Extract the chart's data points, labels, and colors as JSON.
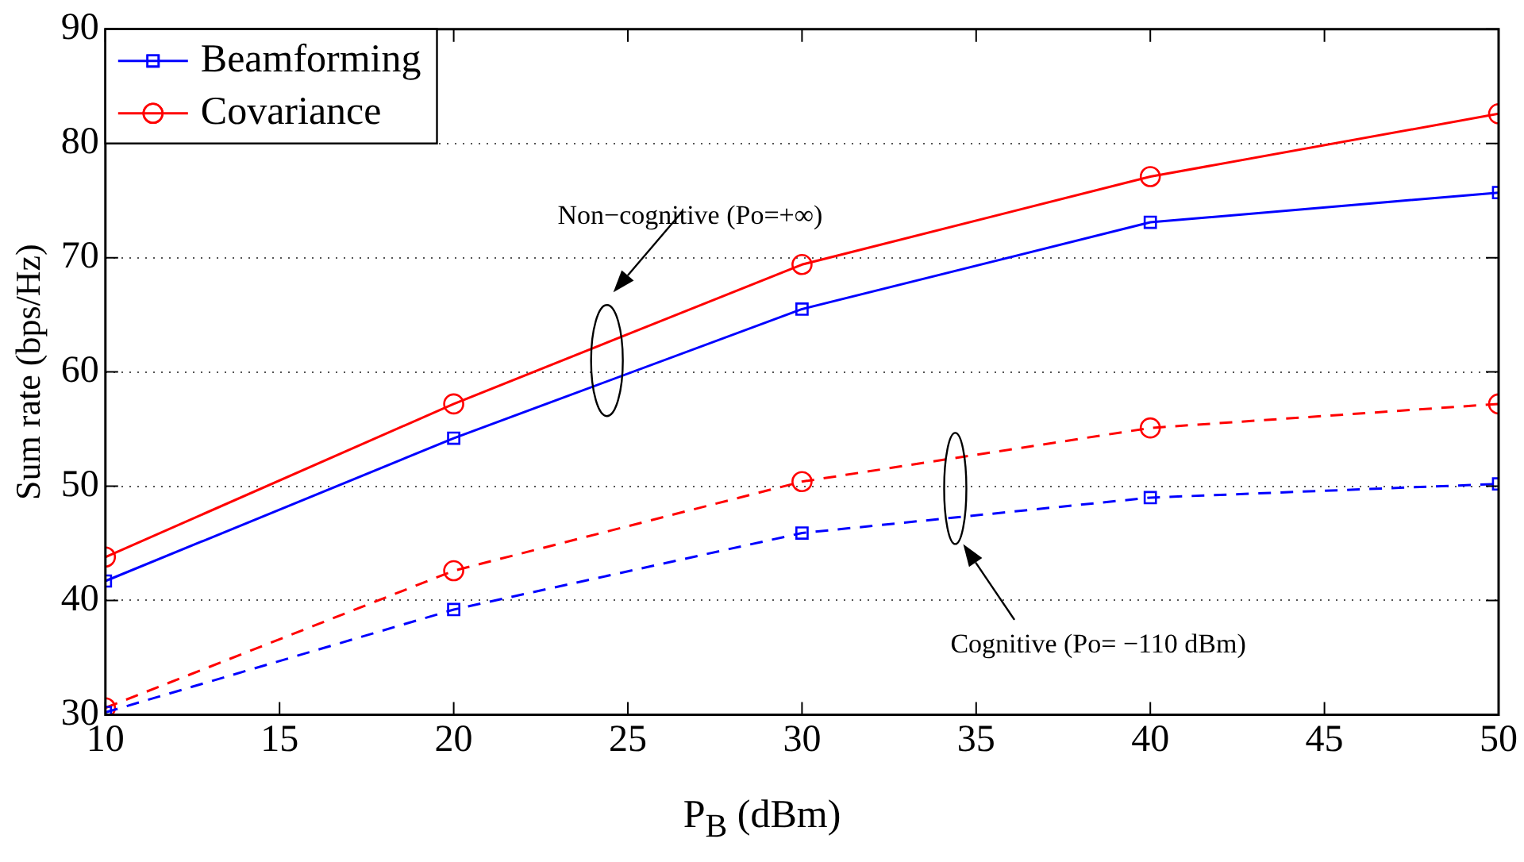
{
  "chart_data": {
    "type": "line",
    "xlabel": "P$_{B}$ (dBm)",
    "ylabel": "Sum rate (bps/Hz)",
    "x": [
      10,
      20,
      30,
      40,
      50
    ],
    "series": [
      {
        "name": "Beamforming",
        "color": "#0000ff",
        "marker": "square",
        "line_style": "solid",
        "values": [
          41.7,
          54.2,
          65.5,
          73.1,
          75.7
        ]
      },
      {
        "name": "Covariance",
        "color": "#ff0000",
        "marker": "circle",
        "line_style": "solid",
        "values": [
          43.8,
          57.2,
          69.4,
          77.1,
          82.6
        ]
      },
      {
        "color": "#0000ff",
        "marker": "square",
        "line_style": "dashed",
        "values": [
          30.2,
          39.2,
          45.9,
          49.0,
          50.2
        ]
      },
      {
        "color": "#ff0000",
        "marker": "circle",
        "line_style": "dashed",
        "values": [
          30.6,
          42.6,
          50.4,
          55.1,
          57.2
        ]
      }
    ],
    "xlim": [
      10,
      50
    ],
    "xticks": [
      10,
      15,
      20,
      25,
      30,
      35,
      40,
      45,
      50
    ],
    "ylim": [
      30,
      90
    ],
    "yticks": [
      30,
      40,
      50,
      60,
      70,
      80,
      90
    ],
    "grid": "y",
    "legend": "top left",
    "annotations": [
      "Non−cognitive (Po=+∞)",
      "Cognitive (Po= −110 dBm)"
    ]
  }
}
